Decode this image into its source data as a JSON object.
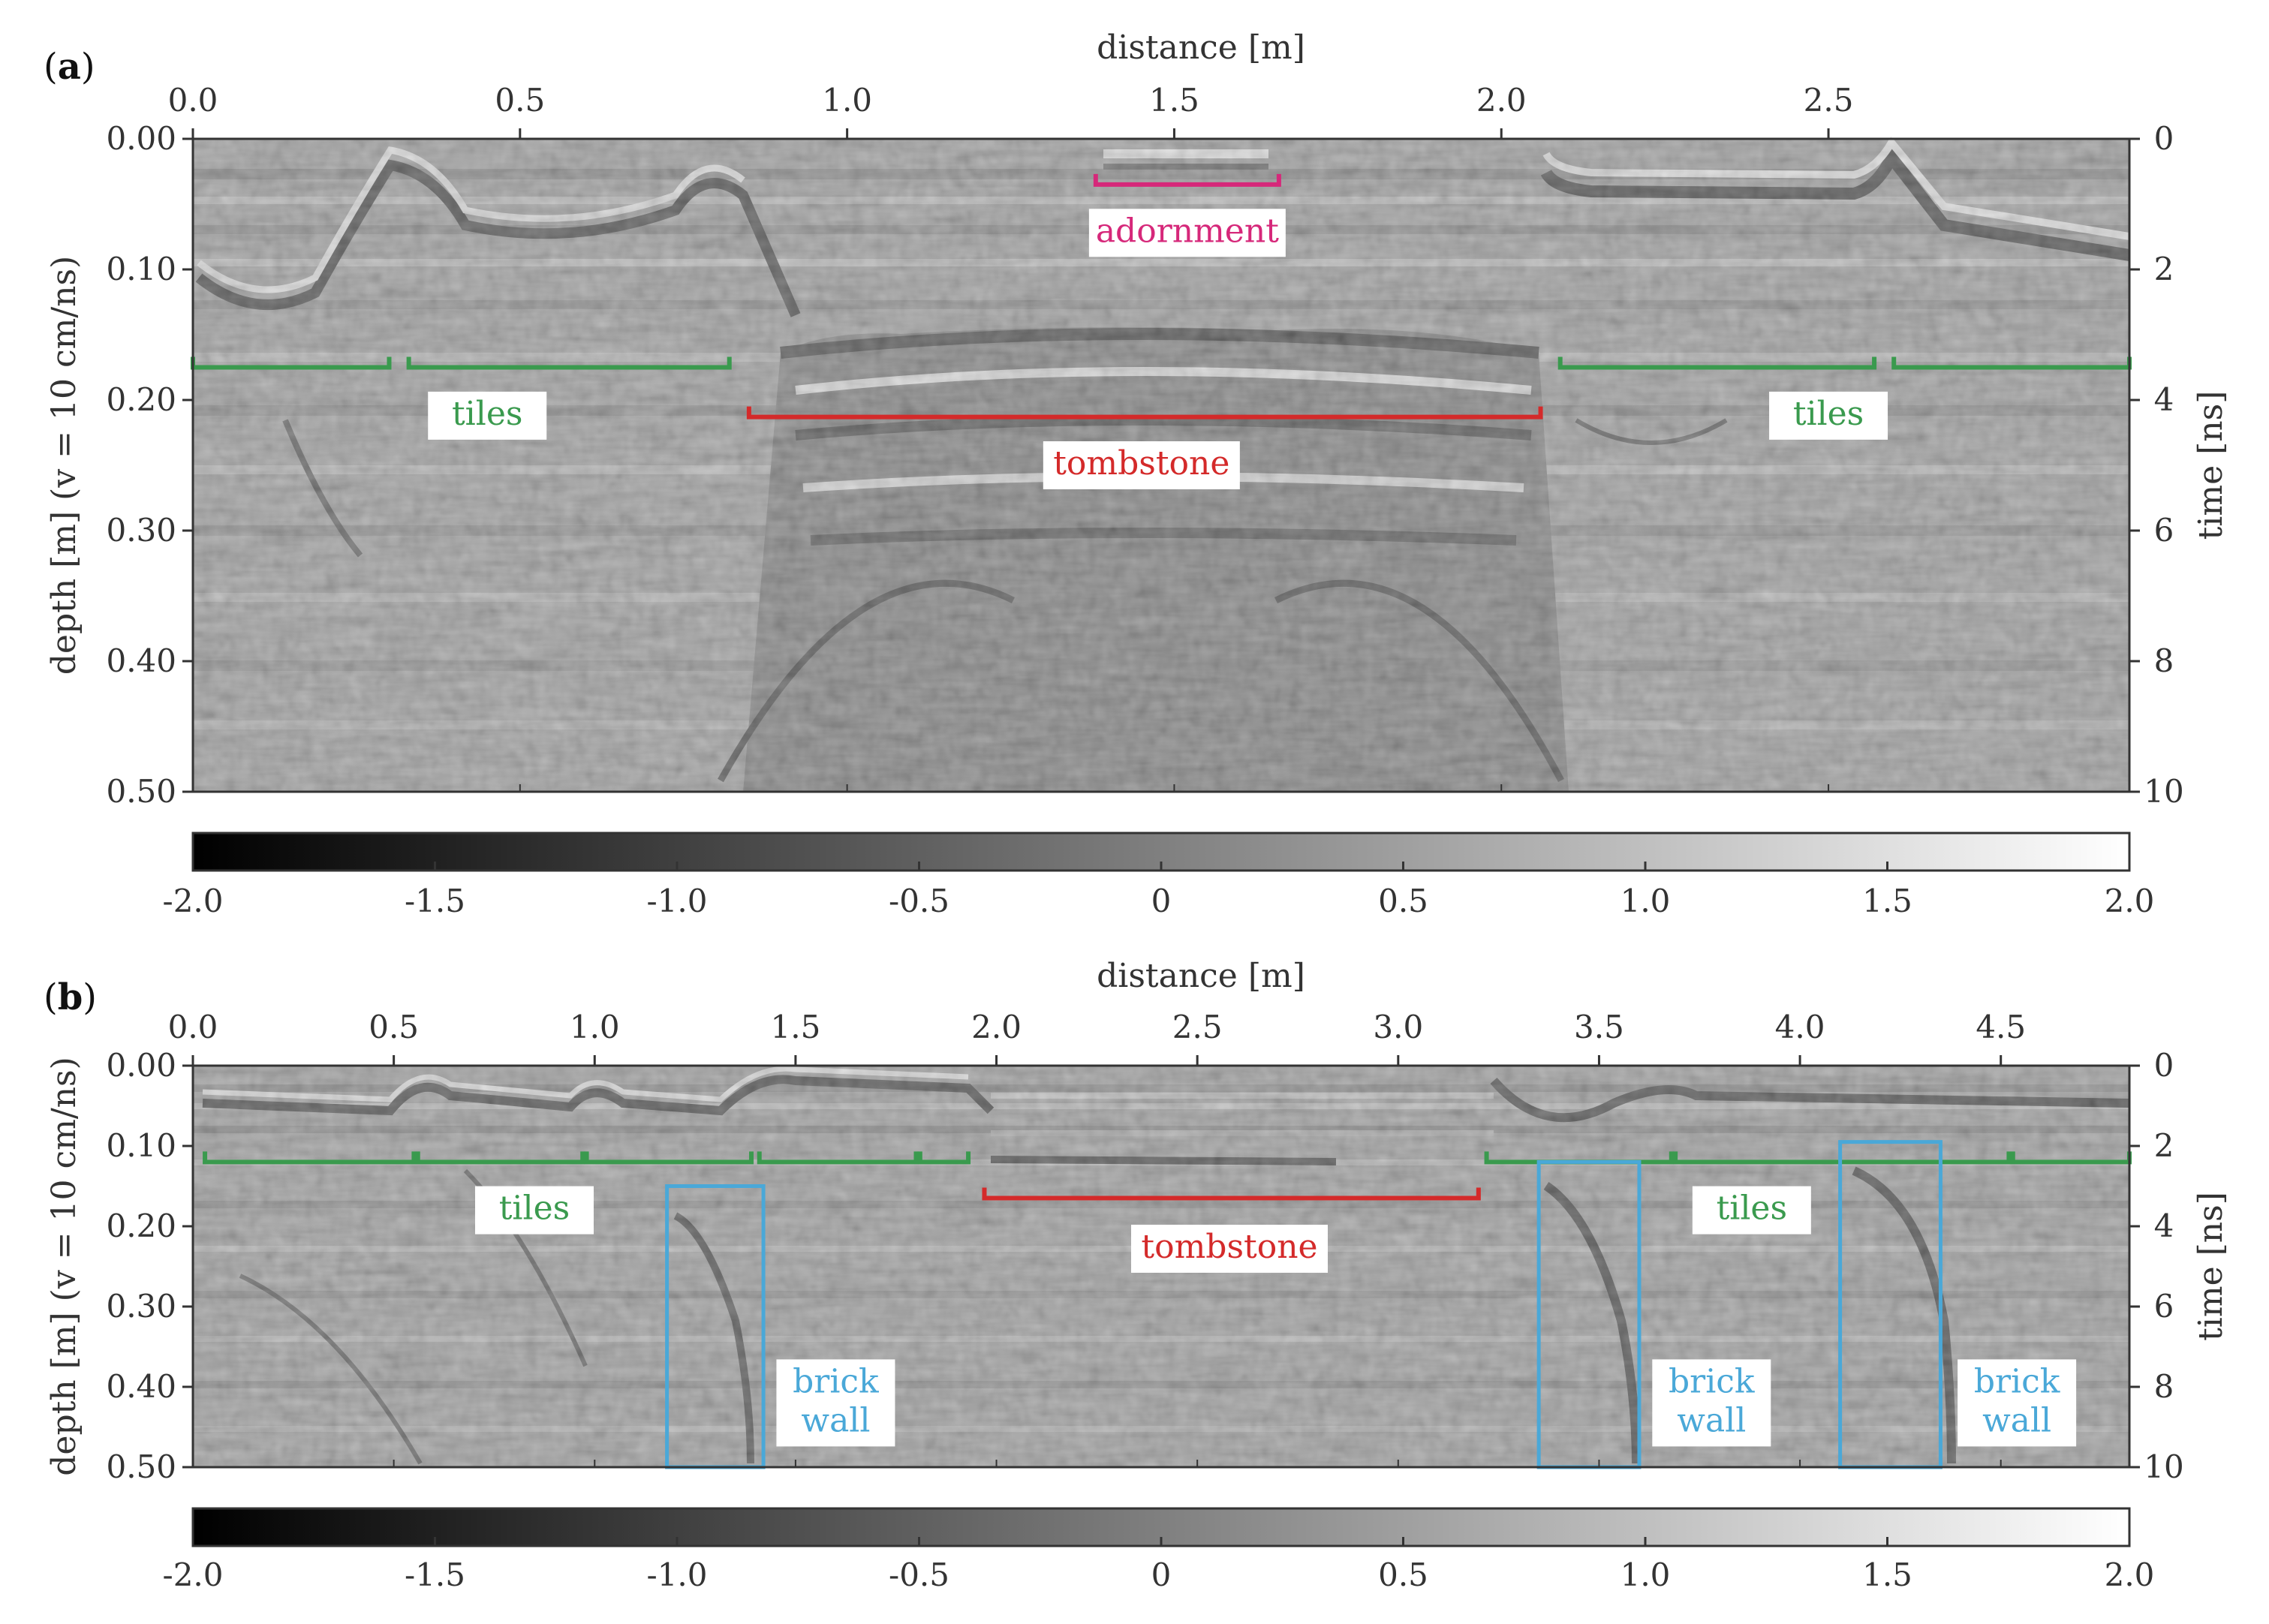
{
  "figure": {
    "colors": {
      "tiles": "#3a9a4e",
      "tombstone": "#d42a2a",
      "adornment": "#d6287a",
      "brick_wall": "#4aa8d8",
      "axis": "#333333"
    }
  },
  "chart_data": [
    {
      "type": "heatmap",
      "panel_label": "(a)",
      "panel_letter": "a",
      "xlabel": "distance [m]",
      "ylabel_left": "depth [m]  (v = 10 cm/ns)",
      "ylabel_right": "time [ns]",
      "xlim": [
        0,
        2.96
      ],
      "ylim_depth": [
        0.0,
        0.5
      ],
      "ylim_time": [
        0,
        10
      ],
      "x_ticks": [
        0.0,
        0.5,
        1.0,
        1.5,
        2.0,
        2.5
      ],
      "x_tick_labels": [
        "0.0",
        "0.5",
        "1.0",
        "1.5",
        "2.0",
        "2.5"
      ],
      "y_ticks": [
        0.0,
        0.1,
        0.2,
        0.3,
        0.4,
        0.5
      ],
      "y_tick_labels": [
        "0.00",
        "0.10",
        "0.20",
        "0.30",
        "0.40",
        "0.50"
      ],
      "time_ticks": [
        0,
        2,
        4,
        6,
        8,
        10
      ],
      "time_tick_labels": [
        "0",
        "2",
        "4",
        "6",
        "8",
        "10"
      ],
      "colorbar": {
        "min": -2.0,
        "max": 2.0,
        "ticks": [
          -2.0,
          -1.5,
          -1.0,
          -0.5,
          0,
          0.5,
          1.0,
          1.5,
          2.0
        ],
        "tick_labels": [
          "-2.0",
          "-1.5",
          "-1.0",
          "-0.5",
          "0",
          "0.5",
          "1.0",
          "1.5",
          "2.0"
        ]
      },
      "annotations": [
        {
          "label": "adornment",
          "kind": "bracket",
          "color": "adornment",
          "x_start": 1.38,
          "x_end": 1.66,
          "depth": 0.035,
          "label_x": 1.52,
          "label_depth": 0.072
        },
        {
          "label": "tiles",
          "kind": "bracket",
          "color": "tiles",
          "x_start": 0.0,
          "x_end": 0.3,
          "depth": 0.175
        },
        {
          "label": "tiles",
          "kind": "bracket",
          "color": "tiles",
          "x_start": 0.33,
          "x_end": 0.82,
          "depth": 0.175,
          "label_x": 0.45,
          "label_depth": 0.212
        },
        {
          "label": "tombstone",
          "kind": "bracket",
          "color": "tombstone",
          "x_start": 0.85,
          "x_end": 2.06,
          "depth": 0.213,
          "label_x": 1.45,
          "label_depth": 0.25
        },
        {
          "label": "tiles",
          "kind": "bracket",
          "color": "tiles",
          "x_start": 2.09,
          "x_end": 2.57,
          "depth": 0.175,
          "label_x": 2.5,
          "label_depth": 0.212
        },
        {
          "label": "tiles",
          "kind": "bracket",
          "color": "tiles",
          "x_start": 2.6,
          "x_end": 2.96,
          "depth": 0.175
        }
      ]
    },
    {
      "type": "heatmap",
      "panel_label": "(b)",
      "panel_letter": "b",
      "xlabel": "distance [m]",
      "ylabel_left": "depth [m]  (v = 10 cm/ns)",
      "ylabel_right": "time [ns]",
      "xlim": [
        0,
        4.82
      ],
      "ylim_depth": [
        0.0,
        0.5
      ],
      "ylim_time": [
        0,
        10
      ],
      "x_ticks": [
        0.0,
        0.5,
        1.0,
        1.5,
        2.0,
        2.5,
        3.0,
        3.5,
        4.0,
        4.5
      ],
      "x_tick_labels": [
        "0.0",
        "0.5",
        "1.0",
        "1.5",
        "2.0",
        "2.5",
        "3.0",
        "3.5",
        "4.0",
        "4.5"
      ],
      "y_ticks": [
        0.0,
        0.1,
        0.2,
        0.3,
        0.4,
        0.5
      ],
      "y_tick_labels": [
        "0.00",
        "0.10",
        "0.20",
        "0.30",
        "0.40",
        "0.50"
      ],
      "time_ticks": [
        0,
        2,
        4,
        6,
        8,
        10
      ],
      "time_tick_labels": [
        "0",
        "2",
        "4",
        "6",
        "8",
        "10"
      ],
      "colorbar": {
        "min": -2.0,
        "max": 2.0,
        "ticks": [
          -2.0,
          -1.5,
          -1.0,
          -0.5,
          0,
          0.5,
          1.0,
          1.5,
          2.0
        ],
        "tick_labels": [
          "-2.0",
          "-1.5",
          "-1.0",
          "-0.5",
          "0",
          "0.5",
          "1.0",
          "1.5",
          "2.0"
        ]
      },
      "annotations": [
        {
          "label": "tiles",
          "kind": "bracket",
          "color": "tiles",
          "x_start": 0.03,
          "x_end": 0.55,
          "depth": 0.12
        },
        {
          "label": "tiles",
          "kind": "bracket",
          "color": "tiles",
          "x_start": 0.56,
          "x_end": 0.97,
          "depth": 0.12,
          "label_x": 0.85,
          "label_depth": 0.18
        },
        {
          "label": "tiles",
          "kind": "bracket",
          "color": "tiles",
          "x_start": 0.98,
          "x_end": 1.39,
          "depth": 0.12
        },
        {
          "label": "tiles",
          "kind": "bracket",
          "color": "tiles",
          "x_start": 1.41,
          "x_end": 1.8,
          "depth": 0.12
        },
        {
          "label": "tiles",
          "kind": "bracket",
          "color": "tiles",
          "x_start": 1.81,
          "x_end": 1.93,
          "depth": 0.12
        },
        {
          "label": "tombstone",
          "kind": "bracket",
          "color": "tombstone",
          "x_start": 1.97,
          "x_end": 3.2,
          "depth": 0.165,
          "label_x": 2.58,
          "label_depth": 0.228
        },
        {
          "label": "tiles",
          "kind": "bracket",
          "color": "tiles",
          "x_start": 3.22,
          "x_end": 3.68,
          "depth": 0.12
        },
        {
          "label": "tiles",
          "kind": "bracket",
          "color": "tiles",
          "x_start": 3.69,
          "x_end": 4.52,
          "depth": 0.12,
          "label_x": 3.88,
          "label_depth": 0.18
        },
        {
          "label": "tiles",
          "kind": "bracket",
          "color": "tiles",
          "x_start": 4.53,
          "x_end": 4.82,
          "depth": 0.12
        },
        {
          "label": "brick wall",
          "kind": "box",
          "color": "brick_wall",
          "x_start": 1.18,
          "x_end": 1.42,
          "depth_start": 0.15,
          "depth_end": 0.5,
          "label_x": 1.6,
          "label_depth": 0.42
        },
        {
          "label": "brick wall",
          "kind": "box",
          "color": "brick_wall",
          "x_start": 3.35,
          "x_end": 3.6,
          "depth_start": 0.12,
          "depth_end": 0.5,
          "label_x": 3.78,
          "label_depth": 0.42
        },
        {
          "label": "brick wall",
          "kind": "box",
          "color": "brick_wall",
          "x_start": 4.1,
          "x_end": 4.35,
          "depth_start": 0.095,
          "depth_end": 0.5,
          "label_x": 4.54,
          "label_depth": 0.42
        }
      ]
    }
  ]
}
